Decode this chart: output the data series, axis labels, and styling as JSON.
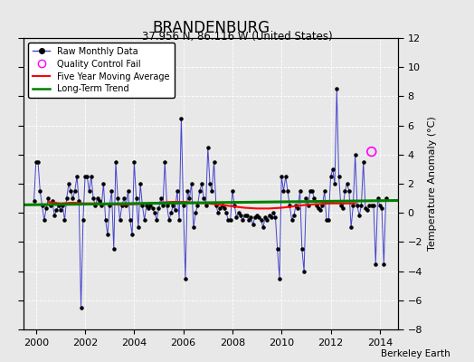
{
  "title": "BRANDENBURG",
  "subtitle": "37.956 N, 86.116 W (United States)",
  "ylabel": "Temperature Anomaly (°C)",
  "attribution": "Berkeley Earth",
  "xlim": [
    1999.5,
    2014.75
  ],
  "ylim": [
    -8,
    12
  ],
  "yticks": [
    -8,
    -6,
    -4,
    -2,
    0,
    2,
    4,
    6,
    8,
    10,
    12
  ],
  "xticks": [
    2000,
    2002,
    2004,
    2006,
    2008,
    2010,
    2012,
    2014
  ],
  "bg_color": "#e8e8e8",
  "raw_line_color": "#4444cc",
  "raw_dot_color": "black",
  "ma_color": "red",
  "trend_color": "green",
  "qc_fail_color": "magenta",
  "raw_data": [
    1999.917,
    0.8,
    2000.0,
    3.5,
    2000.083,
    3.5,
    2000.167,
    1.5,
    2000.25,
    0.5,
    2000.333,
    -0.5,
    2000.417,
    0.3,
    2000.5,
    1.0,
    2000.583,
    0.5,
    2000.667,
    0.8,
    2000.75,
    -0.2,
    2000.833,
    0.2,
    2000.917,
    0.5,
    2001.0,
    0.2,
    2001.083,
    0.5,
    2001.167,
    -0.5,
    2001.25,
    1.0,
    2001.333,
    2.0,
    2001.417,
    1.5,
    2001.5,
    1.0,
    2001.583,
    1.5,
    2001.667,
    2.5,
    2001.75,
    0.8,
    2001.833,
    -6.5,
    2001.917,
    -0.5,
    2002.0,
    2.5,
    2002.083,
    2.5,
    2002.167,
    1.5,
    2002.25,
    2.5,
    2002.333,
    1.0,
    2002.417,
    0.5,
    2002.5,
    1.0,
    2002.583,
    0.8,
    2002.667,
    0.5,
    2002.75,
    2.0,
    2002.833,
    -0.5,
    2002.917,
    -1.5,
    2003.0,
    0.5,
    2003.083,
    1.5,
    2003.167,
    -2.5,
    2003.25,
    3.5,
    2003.333,
    1.0,
    2003.417,
    -0.5,
    2003.5,
    0.5,
    2003.583,
    1.0,
    2003.667,
    0.5,
    2003.75,
    1.5,
    2003.833,
    -0.5,
    2003.917,
    -1.5,
    2004.0,
    3.5,
    2004.083,
    1.0,
    2004.167,
    -1.0,
    2004.25,
    2.0,
    2004.333,
    0.5,
    2004.417,
    -0.5,
    2004.5,
    0.5,
    2004.583,
    0.3,
    2004.667,
    0.5,
    2004.75,
    0.3,
    2004.833,
    0.0,
    2004.917,
    -0.5,
    2005.0,
    0.3,
    2005.083,
    1.0,
    2005.167,
    0.5,
    2005.25,
    3.5,
    2005.333,
    0.5,
    2005.417,
    -0.5,
    2005.5,
    0.0,
    2005.583,
    0.5,
    2005.667,
    0.2,
    2005.75,
    1.5,
    2005.833,
    -0.5,
    2005.917,
    6.5,
    2006.0,
    0.5,
    2006.083,
    -4.5,
    2006.167,
    1.5,
    2006.25,
    1.0,
    2006.333,
    2.0,
    2006.417,
    -1.0,
    2006.5,
    0.0,
    2006.583,
    0.5,
    2006.667,
    1.5,
    2006.75,
    2.0,
    2006.833,
    1.0,
    2006.917,
    0.5,
    2007.0,
    4.5,
    2007.083,
    2.0,
    2007.167,
    1.5,
    2007.25,
    3.5,
    2007.333,
    0.5,
    2007.417,
    0.0,
    2007.5,
    0.3,
    2007.583,
    0.5,
    2007.667,
    0.3,
    2007.75,
    0.0,
    2007.833,
    -0.5,
    2007.917,
    -0.5,
    2008.0,
    1.5,
    2008.083,
    0.5,
    2008.167,
    -0.3,
    2008.25,
    0.0,
    2008.333,
    -0.2,
    2008.417,
    -0.5,
    2008.5,
    -0.2,
    2008.583,
    -0.2,
    2008.667,
    -0.5,
    2008.75,
    -0.3,
    2008.833,
    -0.8,
    2008.917,
    -0.3,
    2009.0,
    -0.2,
    2009.083,
    -0.3,
    2009.167,
    -0.5,
    2009.25,
    -1.0,
    2009.333,
    -0.3,
    2009.417,
    -0.5,
    2009.5,
    -0.2,
    2009.583,
    -0.3,
    2009.667,
    0.0,
    2009.75,
    -0.3,
    2009.833,
    -2.5,
    2009.917,
    -4.5,
    2010.0,
    2.5,
    2010.083,
    1.5,
    2010.167,
    2.5,
    2010.25,
    1.5,
    2010.333,
    0.5,
    2010.417,
    -0.5,
    2010.5,
    -0.2,
    2010.583,
    0.5,
    2010.667,
    0.3,
    2010.75,
    1.5,
    2010.833,
    -2.5,
    2010.917,
    -4.0,
    2011.0,
    1.0,
    2011.083,
    0.5,
    2011.167,
    1.5,
    2011.25,
    1.5,
    2011.333,
    1.0,
    2011.417,
    0.5,
    2011.5,
    0.3,
    2011.583,
    0.2,
    2011.667,
    0.5,
    2011.75,
    1.5,
    2011.833,
    -0.5,
    2011.917,
    -0.5,
    2012.0,
    2.5,
    2012.083,
    3.0,
    2012.167,
    2.0,
    2012.25,
    8.5,
    2012.333,
    2.5,
    2012.417,
    0.5,
    2012.5,
    0.3,
    2012.583,
    1.5,
    2012.667,
    2.0,
    2012.75,
    1.5,
    2012.833,
    -1.0,
    2012.917,
    0.5,
    2013.0,
    4.0,
    2013.083,
    0.5,
    2013.167,
    -0.2,
    2013.25,
    0.5,
    2013.333,
    3.5,
    2013.417,
    0.3,
    2013.5,
    0.2,
    2013.583,
    0.5,
    2013.667,
    0.5,
    2013.75,
    0.5,
    2013.833,
    -3.5,
    2013.917,
    1.0,
    2014.0,
    0.5,
    2014.083,
    0.3,
    2014.167,
    -3.5,
    2014.25,
    1.0
  ],
  "qc_fail_x": [
    2013.667
  ],
  "qc_fail_y": [
    4.2
  ],
  "moving_avg_x": [
    2000.5,
    2001.0,
    2001.5,
    2002.0,
    2002.5,
    2003.0,
    2003.5,
    2004.0,
    2004.5,
    2005.0,
    2005.5,
    2006.0,
    2006.5,
    2007.0,
    2007.5,
    2008.0,
    2008.5,
    2009.0,
    2009.5,
    2010.0,
    2010.5,
    2011.0,
    2011.5,
    2012.0,
    2012.5,
    2013.0
  ],
  "moving_avg_y": [
    0.75,
    0.65,
    0.7,
    0.65,
    0.65,
    0.6,
    0.55,
    0.6,
    0.65,
    0.7,
    0.75,
    0.75,
    0.7,
    0.65,
    0.55,
    0.45,
    0.35,
    0.3,
    0.3,
    0.35,
    0.45,
    0.55,
    0.6,
    0.65,
    0.65,
    0.65
  ],
  "trend_x": [
    1999.5,
    2014.75
  ],
  "trend_y": [
    0.55,
    0.85
  ]
}
